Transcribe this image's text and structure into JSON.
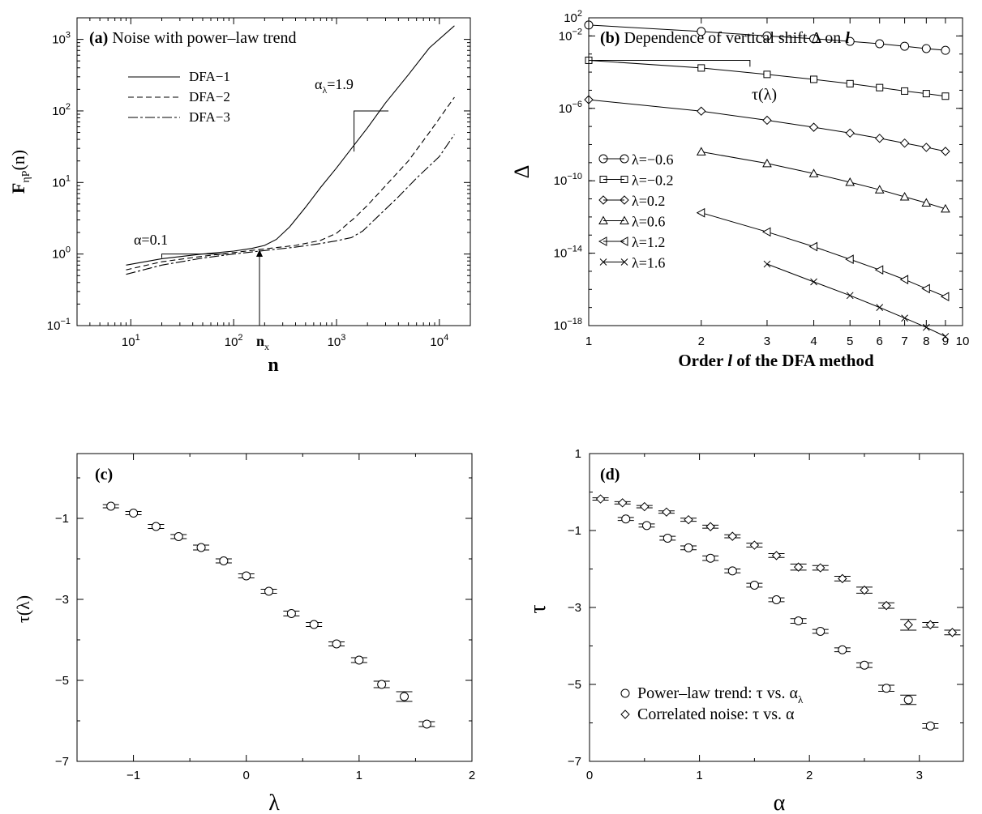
{
  "chart_data": [
    {
      "panel": "a",
      "type": "line",
      "title_tag": "(a)",
      "title": "Noise with power–law trend",
      "xlabel": "n",
      "ylabel_main": "F",
      "ylabel_sub": "ηP",
      "ylabel_arg": "(n)",
      "xscale": "log",
      "yscale": "log",
      "xlim": [
        3,
        20000
      ],
      "ylim": [
        0.1,
        2000
      ],
      "xticks": [
        10,
        100,
        1000,
        10000
      ],
      "xtick_labels": [
        [
          "10",
          "1"
        ],
        [
          "10",
          "2"
        ],
        [
          "10",
          "3"
        ],
        [
          "10",
          "4"
        ]
      ],
      "yticks": [
        0.1,
        1,
        10,
        100,
        1000
      ],
      "ytick_labels": [
        [
          "10",
          "−1"
        ],
        [
          "10",
          "0"
        ],
        [
          "10",
          "1"
        ],
        [
          "10",
          "2"
        ],
        [
          "10",
          "3"
        ]
      ],
      "legend_position": "upper-left",
      "series": [
        {
          "name": "DFA−1",
          "dash": "",
          "points": [
            [
              9,
              0.7
            ],
            [
              20,
              0.86
            ],
            [
              50,
              1.0
            ],
            [
              100,
              1.1
            ],
            [
              150,
              1.2
            ],
            [
              200,
              1.32
            ],
            [
              260,
              1.6
            ],
            [
              350,
              2.4
            ],
            [
              500,
              4.5
            ],
            [
              700,
              8.5
            ],
            [
              1000,
              16
            ],
            [
              1500,
              34
            ],
            [
              2000,
              58
            ],
            [
              3000,
              130
            ],
            [
              5000,
              320
            ],
            [
              8000,
              760
            ],
            [
              14000,
              1550
            ]
          ]
        },
        {
          "name": "DFA−2",
          "dash": "7,4",
          "points": [
            [
              9,
              0.6
            ],
            [
              20,
              0.78
            ],
            [
              50,
              0.93
            ],
            [
              100,
              1.05
            ],
            [
              200,
              1.18
            ],
            [
              400,
              1.32
            ],
            [
              700,
              1.55
            ],
            [
              1000,
              1.95
            ],
            [
              1500,
              3.2
            ],
            [
              2000,
              4.8
            ],
            [
              3000,
              9
            ],
            [
              5000,
              20
            ],
            [
              8000,
              50
            ],
            [
              14000,
              155
            ]
          ]
        },
        {
          "name": "DFA−3",
          "dash": "12,3,3,3",
          "points": [
            [
              9,
              0.52
            ],
            [
              20,
              0.7
            ],
            [
              50,
              0.88
            ],
            [
              100,
              1.0
            ],
            [
              200,
              1.12
            ],
            [
              400,
              1.25
            ],
            [
              700,
              1.4
            ],
            [
              1000,
              1.53
            ],
            [
              1400,
              1.7
            ],
            [
              1800,
              2.1
            ],
            [
              2500,
              3.3
            ],
            [
              4000,
              6.3
            ],
            [
              6000,
              11.5
            ],
            [
              10000,
              23
            ],
            [
              14000,
              47
            ]
          ]
        }
      ],
      "annotations": {
        "alpha_label": "α=0.1",
        "alpha_lambda_label_main": "α",
        "alpha_lambda_label_sub": "λ",
        "alpha_lambda_label_value": "=1.9",
        "nx_main": "n",
        "nx_sub": "x"
      }
    },
    {
      "panel": "b",
      "type": "line",
      "title_tag": "(b)",
      "title": "Dependence of  vertical shift Δ on",
      "title_italic": "l",
      "xlabel_pre": "Order",
      "xlabel_italic": "l",
      "xlabel_post": "of the DFA method",
      "ylabel": "Δ",
      "xscale": "log",
      "yscale": "log",
      "xlim": [
        1,
        10
      ],
      "ylim": [
        1e-18,
        0.1
      ],
      "xticks": [
        1,
        2,
        3,
        4,
        5,
        6,
        7,
        8,
        9,
        10
      ],
      "yticks": [
        1e-18,
        1e-14,
        1e-10,
        1e-06,
        0.01
      ],
      "ytick_labels": [
        [
          "10",
          "−18"
        ],
        [
          "10",
          "−14"
        ],
        [
          "10",
          "−10"
        ],
        [
          "10",
          "−6"
        ],
        [
          "10",
          "−2"
        ]
      ],
      "top_tick_label": [
        "10",
        "2"
      ],
      "legend_position": "center-left",
      "series": [
        {
          "name": "λ=−0.6",
          "marker": "circle",
          "x": [
            1,
            2,
            3,
            4,
            5,
            6,
            7,
            8,
            9
          ],
          "y": [
            0.04,
            0.0175,
            0.01,
            0.007,
            0.005,
            0.0037,
            0.0027,
            0.002,
            0.0016
          ]
        },
        {
          "name": "λ=−0.2",
          "marker": "square",
          "x": [
            1,
            2,
            3,
            4,
            5,
            6,
            7,
            8,
            9
          ],
          "y": [
            0.00045,
            0.00017,
            7.5e-05,
            4e-05,
            2.3e-05,
            1.4e-05,
            9e-06,
            6.5e-06,
            4.7e-06
          ]
        },
        {
          "name": "λ=0.2",
          "marker": "diamond",
          "x": [
            1,
            2,
            3,
            4,
            5,
            6,
            7,
            8,
            9
          ],
          "y": [
            3e-06,
            7e-07,
            2.2e-07,
            9e-08,
            4.3e-08,
            2.2e-08,
            1.2e-08,
            7e-09,
            4.2e-09
          ]
        },
        {
          "name": "λ=0.6",
          "marker": "triangle-up",
          "x": [
            2,
            3,
            4,
            5,
            6,
            7,
            8,
            9
          ],
          "y": [
            4e-09,
            9e-10,
            2.5e-10,
            8.3e-11,
            3.2e-11,
            1.3e-11,
            6e-12,
            2.8e-12
          ]
        },
        {
          "name": "λ=1.2",
          "marker": "triangle-left",
          "x": [
            2,
            3,
            4,
            5,
            6,
            7,
            8,
            9
          ],
          "y": [
            1.7e-12,
            1.5e-13,
            2.3e-14,
            4.6e-15,
            1.2e-15,
            3.5e-16,
            1.1e-16,
            4e-17
          ]
        },
        {
          "name": "λ=1.6",
          "marker": "cross",
          "x": [
            3,
            4,
            5,
            6,
            7,
            8,
            9
          ],
          "y": [
            2.5e-15,
            2.6e-16,
            4.6e-17,
            1e-17,
            2.6e-18,
            8e-19,
            2.5e-19
          ]
        }
      ],
      "annotations": {
        "tau_label": "τ(λ)"
      }
    },
    {
      "panel": "c",
      "type": "scatter",
      "title_tag": "(c)",
      "xlabel": "λ",
      "ylabel": "τ(λ)",
      "xlim": [
        -1.5,
        2
      ],
      "ylim": [
        -7,
        0.6
      ],
      "xticks": [
        -1,
        0,
        1,
        2
      ],
      "xtick_labels": [
        "−1",
        "0",
        "1",
        "2"
      ],
      "yticks": [
        -7,
        -5,
        -3,
        -1
      ],
      "ytick_labels": [
        "−7",
        "−5",
        "−3",
        "−1"
      ],
      "series": [
        {
          "marker": "circle",
          "x": [
            -1.2,
            -1.0,
            -0.8,
            -0.6,
            -0.4,
            -0.2,
            0.0,
            0.2,
            0.4,
            0.6,
            0.8,
            1.0,
            1.2,
            1.4,
            1.6
          ],
          "y": [
            -0.7,
            -0.87,
            -1.2,
            -1.45,
            -1.72,
            -2.05,
            -2.42,
            -2.8,
            -3.35,
            -3.62,
            -4.1,
            -4.5,
            -5.1,
            -5.4,
            -6.08
          ],
          "err": [
            0.04,
            0.04,
            0.05,
            0.05,
            0.06,
            0.05,
            0.05,
            0.05,
            0.06,
            0.05,
            0.05,
            0.06,
            0.08,
            0.12,
            0.06
          ]
        }
      ]
    },
    {
      "panel": "d",
      "type": "scatter",
      "title_tag": "(d)",
      "xlabel": "α",
      "ylabel": "τ",
      "xlim": [
        0,
        3.4
      ],
      "ylim": [
        -7,
        1
      ],
      "xticks": [
        0,
        1,
        2,
        3
      ],
      "xtick_labels": [
        "0",
        "1",
        "2",
        "3"
      ],
      "yticks": [
        -7,
        -5,
        -3,
        -1,
        1
      ],
      "ytick_labels": [
        "−7",
        "−5",
        "−3",
        "−1",
        "1"
      ],
      "legend_position": "lower-left",
      "series": [
        {
          "name_main": "Power–law trend: τ vs. α",
          "name_sub": "λ",
          "marker": "circle",
          "x": [
            0.33,
            0.52,
            0.71,
            0.9,
            1.1,
            1.3,
            1.5,
            1.7,
            1.9,
            2.1,
            2.3,
            2.5,
            2.7,
            2.9,
            3.1
          ],
          "y": [
            -0.7,
            -0.87,
            -1.2,
            -1.45,
            -1.72,
            -2.05,
            -2.42,
            -2.8,
            -3.35,
            -3.62,
            -4.1,
            -4.5,
            -5.1,
            -5.4,
            -6.08
          ],
          "err": [
            0.04,
            0.04,
            0.05,
            0.05,
            0.06,
            0.05,
            0.05,
            0.05,
            0.06,
            0.05,
            0.05,
            0.06,
            0.08,
            0.12,
            0.06
          ]
        },
        {
          "name_main": "Correlated noise: τ vs. α",
          "marker": "diamond",
          "x": [
            0.1,
            0.3,
            0.5,
            0.7,
            0.9,
            1.1,
            1.3,
            1.5,
            1.7,
            1.9,
            2.1,
            2.3,
            2.5,
            2.7,
            2.9,
            3.1,
            3.3
          ],
          "y": [
            -0.18,
            -0.28,
            -0.38,
            -0.52,
            -0.72,
            -0.9,
            -1.15,
            -1.38,
            -1.65,
            -1.95,
            -1.97,
            -2.25,
            -2.55,
            -2.95,
            -3.45,
            -3.45,
            -3.65
          ],
          "err": [
            0.03,
            0.03,
            0.03,
            0.03,
            0.04,
            0.04,
            0.04,
            0.05,
            0.05,
            0.08,
            0.06,
            0.06,
            0.08,
            0.07,
            0.14,
            0.06,
            0.06
          ]
        }
      ]
    }
  ]
}
